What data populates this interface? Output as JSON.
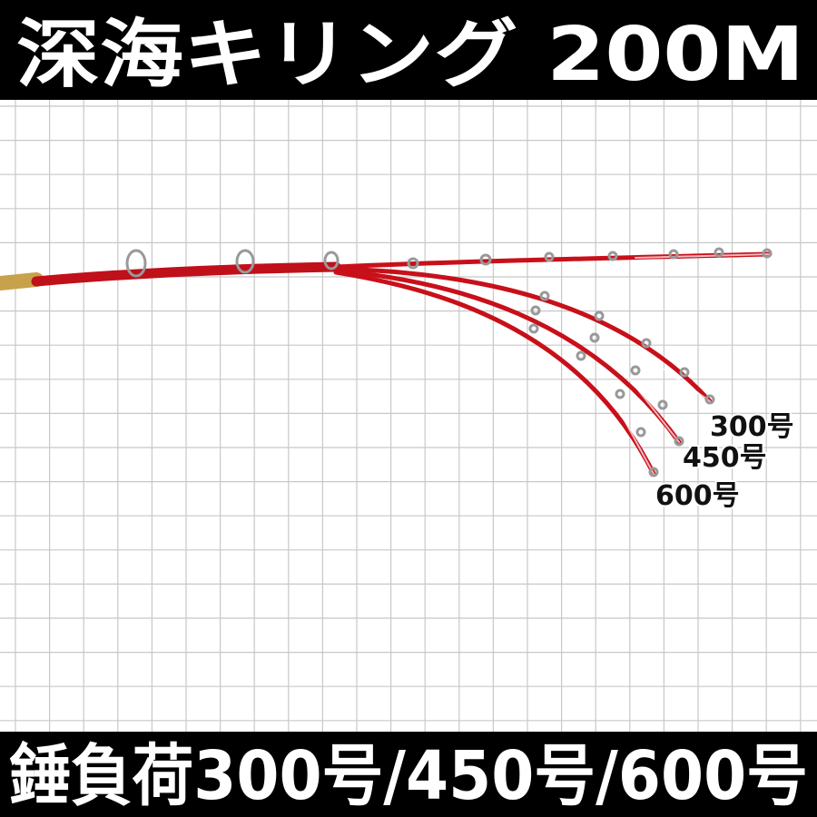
{
  "header": {
    "title": "深海キリング 200M"
  },
  "footer": {
    "text": "錘負荷300号/450号/600号"
  },
  "labels": [
    "300号",
    "450号",
    "600号"
  ]
}
